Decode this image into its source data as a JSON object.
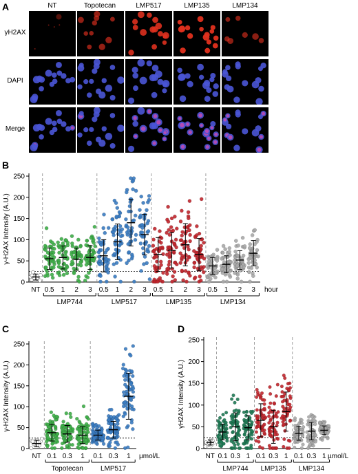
{
  "panel_a": {
    "letter": "A",
    "columns": [
      "NT",
      "Topotecan",
      "LMP517",
      "LMP135",
      "LMP134"
    ],
    "rows": [
      "γH2AX",
      "DAPI",
      "Merge"
    ]
  },
  "colors": {
    "green": "#3fae49",
    "blue": "#3a7cc2",
    "red": "#c0262d",
    "gray": "#a9a9a9",
    "nucleus_blue": "#4a55d6",
    "foci_red": "#e0301e"
  },
  "chart_data": [
    {
      "type": "scatter",
      "panel": "B",
      "ylabel": "γ-H2AX Intensity (A.U.)",
      "ylim": [
        0,
        250
      ],
      "yticks": [
        0,
        50,
        100,
        150,
        200,
        250
      ],
      "threshold": 25,
      "x_unit": "hour",
      "groups": [
        "LMP744",
        "LMP517",
        "LMP135",
        "LMP134"
      ],
      "categories": [
        "NT",
        "0.5",
        "1",
        "2",
        "3",
        "0.5",
        "1",
        "2",
        "3",
        "0.5",
        "1",
        "2",
        "3",
        "0.5",
        "1",
        "2",
        "3"
      ],
      "series": [
        {
          "group": "",
          "mean": 12,
          "sd": 7,
          "n": 14,
          "color": "#ffffff"
        },
        {
          "group": "LMP744",
          "mean": 55,
          "sd": 25,
          "n": 45,
          "color": "#3fae49"
        },
        {
          "group": "LMP744",
          "mean": 58,
          "sd": 27,
          "n": 45,
          "color": "#3fae49"
        },
        {
          "group": "LMP744",
          "mean": 54,
          "sd": 26,
          "n": 45,
          "color": "#3fae49"
        },
        {
          "group": "LMP744",
          "mean": 58,
          "sd": 28,
          "n": 45,
          "color": "#3fae49"
        },
        {
          "group": "LMP517",
          "mean": 62,
          "sd": 38,
          "n": 45,
          "color": "#3a7cc2"
        },
        {
          "group": "LMP517",
          "mean": 95,
          "sd": 42,
          "n": 45,
          "color": "#3a7cc2"
        },
        {
          "group": "LMP517",
          "mean": 140,
          "sd": 55,
          "n": 45,
          "color": "#3a7cc2"
        },
        {
          "group": "LMP517",
          "mean": 112,
          "sd": 48,
          "n": 45,
          "color": "#3a7cc2"
        },
        {
          "group": "LMP135",
          "mean": 65,
          "sd": 40,
          "n": 45,
          "color": "#c0262d"
        },
        {
          "group": "LMP135",
          "mean": 75,
          "sd": 42,
          "n": 45,
          "color": "#c0262d"
        },
        {
          "group": "LMP135",
          "mean": 88,
          "sd": 50,
          "n": 45,
          "color": "#c0262d"
        },
        {
          "group": "LMP135",
          "mean": 65,
          "sd": 38,
          "n": 45,
          "color": "#c0262d"
        },
        {
          "group": "LMP134",
          "mean": 38,
          "sd": 20,
          "n": 45,
          "color": "#a9a9a9"
        },
        {
          "group": "LMP134",
          "mean": 42,
          "sd": 20,
          "n": 45,
          "color": "#a9a9a9"
        },
        {
          "group": "LMP134",
          "mean": 52,
          "sd": 22,
          "n": 45,
          "color": "#a9a9a9"
        },
        {
          "group": "LMP134",
          "mean": 68,
          "sd": 30,
          "n": 45,
          "color": "#a9a9a9"
        }
      ],
      "group_spans": [
        [
          1,
          4
        ],
        [
          5,
          8
        ],
        [
          9,
          12
        ],
        [
          13,
          16
        ]
      ]
    },
    {
      "type": "scatter",
      "panel": "C",
      "ylabel": "γ-H2AX Intensity (A.U.)",
      "ylim": [
        0,
        250
      ],
      "yticks": [
        0,
        50,
        100,
        150,
        200,
        250
      ],
      "threshold": 25,
      "x_unit": "µmol/L",
      "groups": [
        "Topotecan",
        "LMP517"
      ],
      "categories": [
        "NT",
        "0.1",
        "0.3",
        "1",
        "0.1",
        "0.3",
        "1"
      ],
      "series": [
        {
          "group": "",
          "mean": 12,
          "sd": 8,
          "n": 14,
          "color": "#ffffff"
        },
        {
          "group": "Topotecan",
          "mean": 38,
          "sd": 20,
          "n": 70,
          "color": "#3fae49"
        },
        {
          "group": "Topotecan",
          "mean": 35,
          "sd": 20,
          "n": 70,
          "color": "#3fae49"
        },
        {
          "group": "Topotecan",
          "mean": 32,
          "sd": 20,
          "n": 70,
          "color": "#3fae49"
        },
        {
          "group": "LMP517",
          "mean": 32,
          "sd": 12,
          "n": 70,
          "color": "#3a7cc2"
        },
        {
          "group": "LMP517",
          "mean": 45,
          "sd": 20,
          "n": 70,
          "color": "#3a7cc2"
        },
        {
          "group": "LMP517",
          "mean": 125,
          "sd": 55,
          "n": 70,
          "color": "#3a7cc2"
        }
      ],
      "group_spans": [
        [
          1,
          3
        ],
        [
          4,
          6
        ]
      ]
    },
    {
      "type": "scatter",
      "panel": "D",
      "ylabel": "γH2AX Intensity (A.U.)",
      "ylim": [
        0,
        250
      ],
      "yticks": [
        0,
        50,
        100,
        150,
        200,
        250
      ],
      "threshold": 25,
      "x_unit": "µmol/L",
      "groups": [
        "LMP744",
        "LMP135",
        "LMP134"
      ],
      "categories": [
        "NT",
        "0.1",
        "0.3",
        "1",
        "0.1",
        "0.3",
        "1",
        "0.1",
        "0.3",
        "1"
      ],
      "series": [
        {
          "group": "",
          "mean": 14,
          "sd": 6,
          "n": 14,
          "color": "#ffffff"
        },
        {
          "group": "LMP744",
          "mean": 38,
          "sd": 18,
          "n": 55,
          "color": "#1f7a55"
        },
        {
          "group": "LMP744",
          "mean": 50,
          "sd": 32,
          "n": 55,
          "color": "#1f7a55"
        },
        {
          "group": "LMP744",
          "mean": 48,
          "sd": 28,
          "n": 55,
          "color": "#1f7a55"
        },
        {
          "group": "LMP135",
          "mean": 65,
          "sd": 38,
          "n": 55,
          "color": "#c0262d"
        },
        {
          "group": "LMP135",
          "mean": 50,
          "sd": 38,
          "n": 55,
          "color": "#c0262d"
        },
        {
          "group": "LMP135",
          "mean": 85,
          "sd": 45,
          "n": 55,
          "color": "#c0262d"
        },
        {
          "group": "LMP134",
          "mean": 35,
          "sd": 16,
          "n": 55,
          "color": "#a9a9a9"
        },
        {
          "group": "LMP134",
          "mean": 40,
          "sd": 20,
          "n": 55,
          "color": "#a9a9a9"
        },
        {
          "group": "LMP134",
          "mean": 42,
          "sd": 10,
          "n": 55,
          "color": "#a9a9a9"
        }
      ],
      "group_spans": [
        [
          1,
          3
        ],
        [
          4,
          6
        ],
        [
          7,
          9
        ]
      ]
    }
  ]
}
